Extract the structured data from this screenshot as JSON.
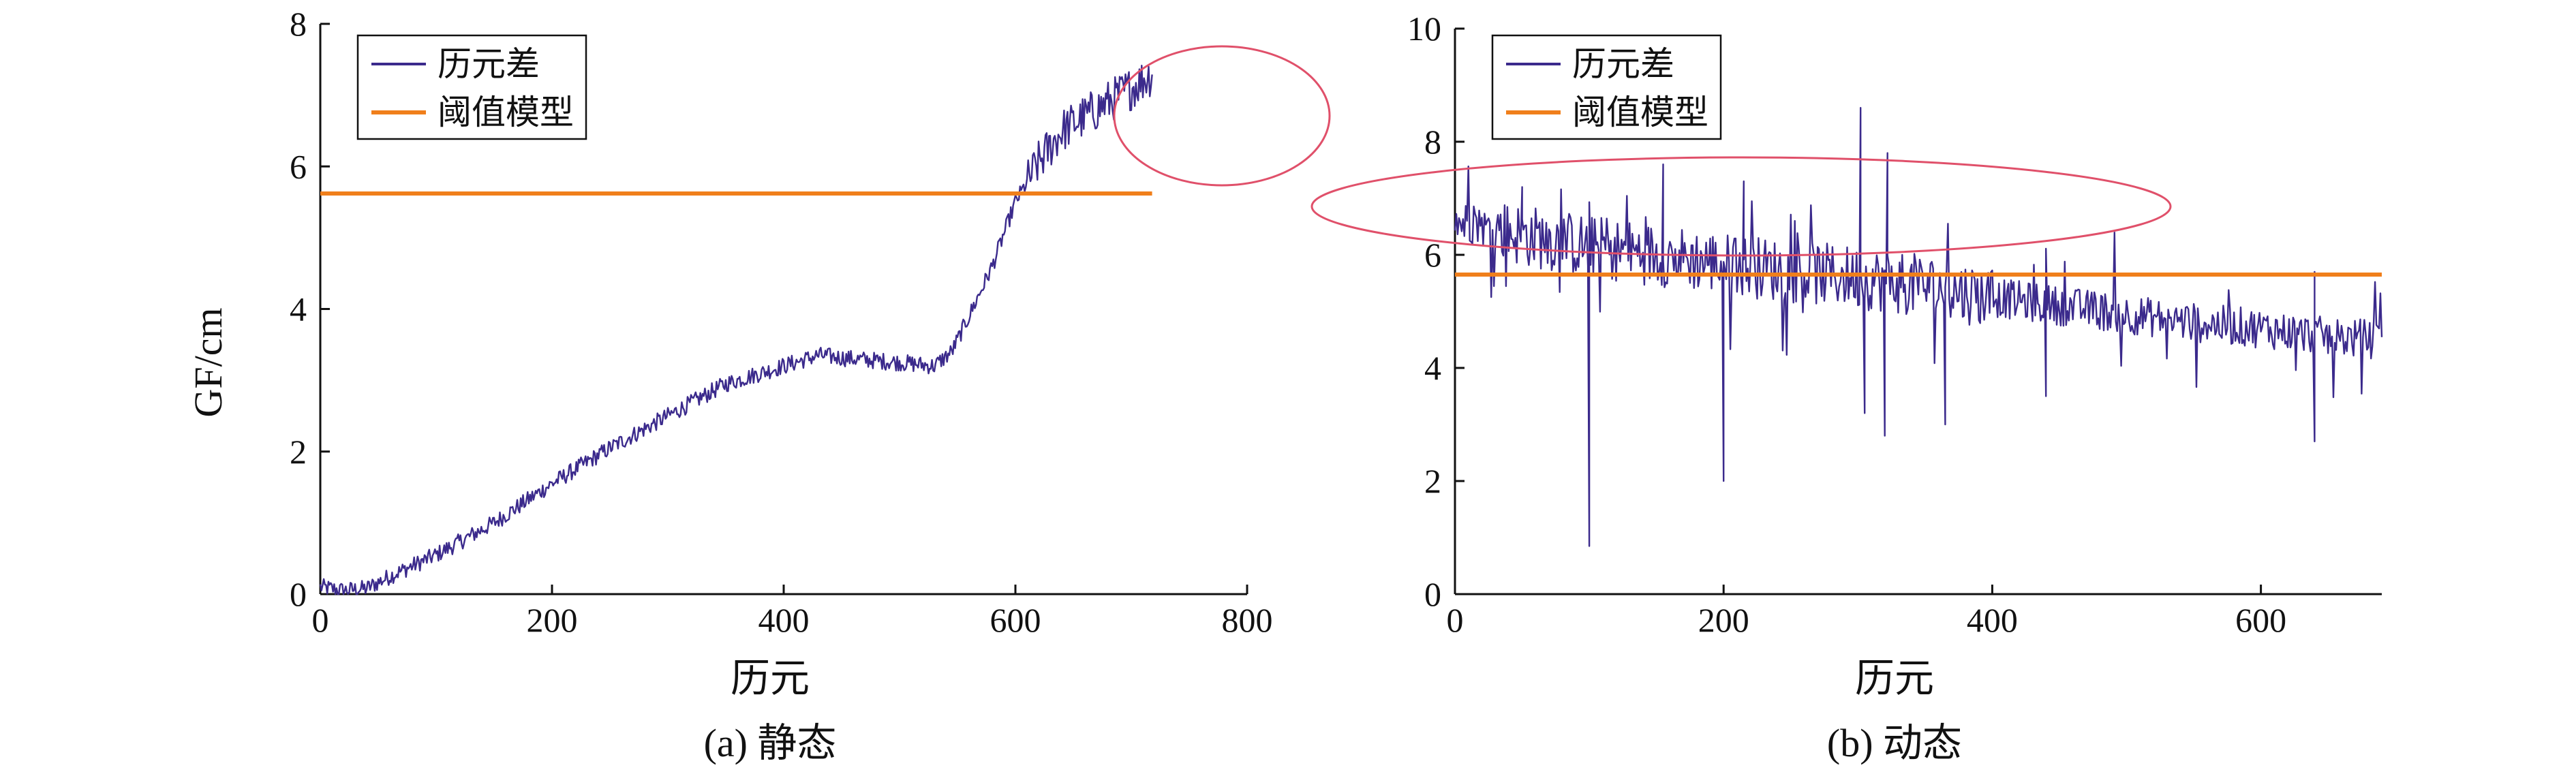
{
  "chart_data": [
    {
      "id": "a",
      "type": "line",
      "title": "(a) 静态",
      "xlabel": "历元",
      "ylabel": "GF/cm",
      "xlim": [
        0,
        800
      ],
      "ylim": [
        0,
        8
      ],
      "xticks": [
        0,
        200,
        400,
        600,
        800
      ],
      "yticks": [
        0,
        2,
        4,
        6,
        8
      ],
      "grid": false,
      "legend_position": "top-left",
      "annotation": "red ellipse highlighting values above threshold around epochs 610-720",
      "series": [
        {
          "name": "历元差",
          "color": "#3b2a8c",
          "noise": 0.12,
          "x": [
            0,
            20,
            40,
            60,
            100,
            150,
            200,
            250,
            300,
            350,
            400,
            430,
            460,
            500,
            530,
            545,
            560,
            580,
            600,
            620,
            640,
            660,
            680,
            700,
            718
          ],
          "y": [
            0.1,
            0.05,
            0.08,
            0.25,
            0.55,
            1.0,
            1.55,
            2.05,
            2.5,
            2.95,
            3.2,
            3.35,
            3.3,
            3.25,
            3.2,
            3.4,
            3.9,
            4.6,
            5.5,
            6.05,
            6.5,
            6.7,
            6.9,
            7.1,
            7.3
          ]
        },
        {
          "name": "阈值模型",
          "color": "#f07f1b",
          "x": [
            0,
            718
          ],
          "y": [
            5.62,
            5.62
          ]
        }
      ]
    },
    {
      "id": "b",
      "type": "line",
      "title": "(b) 动态",
      "xlabel": "历元",
      "ylabel": "",
      "xlim": [
        0,
        690
      ],
      "ylim": [
        0,
        10
      ],
      "xticks": [
        0,
        200,
        400,
        600
      ],
      "yticks": [
        0,
        2,
        4,
        6,
        8,
        10
      ],
      "grid": false,
      "legend_position": "top-left",
      "annotation": "red ellipse highlighting values above threshold around epochs 20-480",
      "series": [
        {
          "name": "历元差",
          "color": "#3b2a8c",
          "noise": 0.35,
          "x": [
            0,
            50,
            100,
            150,
            200,
            250,
            300,
            350,
            400,
            450,
            500,
            550,
            600,
            650,
            690
          ],
          "y": [
            6.6,
            6.35,
            6.15,
            6.0,
            5.85,
            5.7,
            5.6,
            5.45,
            5.25,
            5.1,
            4.95,
            4.8,
            4.7,
            4.55,
            4.5
          ],
          "spikes": [
            {
              "x": 100,
              "y": 0.85
            },
            {
              "x": 200,
              "y": 2.0
            },
            {
              "x": 302,
              "y": 8.6
            },
            {
              "x": 322,
              "y": 7.8
            },
            {
              "x": 320,
              "y": 2.8
            },
            {
              "x": 305,
              "y": 3.2
            },
            {
              "x": 155,
              "y": 7.6
            },
            {
              "x": 365,
              "y": 3.0
            },
            {
              "x": 440,
              "y": 3.5
            },
            {
              "x": 640,
              "y": 2.7
            },
            {
              "x": 640,
              "y": 5.7
            },
            {
              "x": 50,
              "y": 7.2
            },
            {
              "x": 215,
              "y": 7.3
            }
          ]
        },
        {
          "name": "阈值模型",
          "color": "#f07f1b",
          "x": [
            0,
            690
          ],
          "y": [
            5.65,
            5.65
          ]
        }
      ]
    }
  ]
}
